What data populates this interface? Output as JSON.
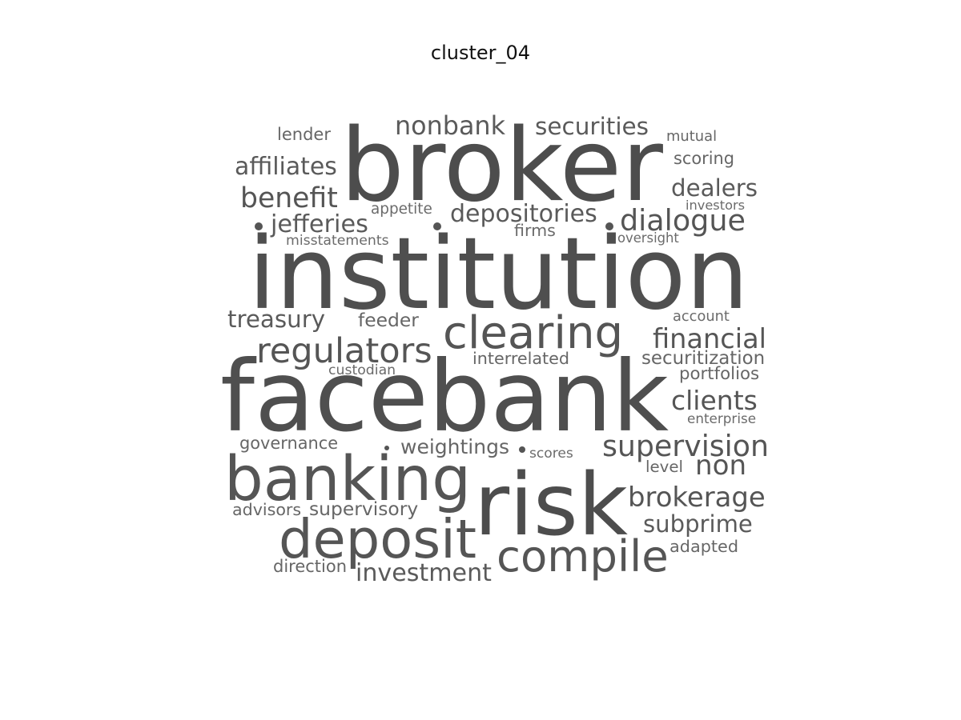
{
  "title": "cluster_04",
  "colors": {
    "word": "#505050",
    "title": "#111111"
  },
  "words": [
    {
      "text": "broker",
      "weight": 100,
      "shade": "#4d4d4d"
    },
    {
      "text": "institution",
      "weight": 100,
      "shade": "#4f4f4f"
    },
    {
      "text": "facebank",
      "weight": 100,
      "shade": "#4f4f4f"
    },
    {
      "text": "risk",
      "weight": 90,
      "shade": "#4d4d4d"
    },
    {
      "text": "banking",
      "weight": 70,
      "shade": "#555555"
    },
    {
      "text": "deposit",
      "weight": 60,
      "shade": "#555555"
    },
    {
      "text": "clearing",
      "weight": 55,
      "shade": "#555555"
    },
    {
      "text": "compile",
      "weight": 48,
      "shade": "#555555"
    },
    {
      "text": "regulators",
      "weight": 40,
      "shade": "#555555"
    },
    {
      "text": "supervision",
      "weight": 34,
      "shade": "#555555"
    },
    {
      "text": "dialogue",
      "weight": 33,
      "shade": "#555555"
    },
    {
      "text": "financial",
      "weight": 32,
      "shade": "#555555"
    },
    {
      "text": "brokerage",
      "weight": 31,
      "shade": "#555555"
    },
    {
      "text": "benefit",
      "weight": 30,
      "shade": "#555555"
    },
    {
      "text": "depositories",
      "weight": 30,
      "shade": "#5a5a5a"
    },
    {
      "text": "clients",
      "weight": 30,
      "shade": "#555555"
    },
    {
      "text": "nonbank",
      "weight": 28,
      "shade": "#5a5a5a"
    },
    {
      "text": "securities",
      "weight": 28,
      "shade": "#5a5a5a"
    },
    {
      "text": "affiliates",
      "weight": 28,
      "shade": "#5a5a5a"
    },
    {
      "text": "jefferies",
      "weight": 28,
      "shade": "#5a5a5a"
    },
    {
      "text": "treasury",
      "weight": 27,
      "shade": "#5a5a5a"
    },
    {
      "text": "investment",
      "weight": 27,
      "shade": "#5a5a5a"
    },
    {
      "text": "non",
      "weight": 27,
      "shade": "#555555"
    },
    {
      "text": "dealers",
      "weight": 26,
      "shade": "#5a5a5a"
    },
    {
      "text": "subprime",
      "weight": 25,
      "shade": "#5a5a5a"
    },
    {
      "text": "weightings",
      "weight": 22,
      "shade": "#666666"
    },
    {
      "text": "supervisory",
      "weight": 21,
      "shade": "#666666"
    },
    {
      "text": "interrelated",
      "weight": 20,
      "shade": "#666666"
    },
    {
      "text": "securitization",
      "weight": 21,
      "shade": "#666666"
    },
    {
      "text": "feeder",
      "weight": 20,
      "shade": "#666666"
    },
    {
      "text": "lender",
      "weight": 19,
      "shade": "#666666"
    },
    {
      "text": "governance",
      "weight": 19,
      "shade": "#666666"
    },
    {
      "text": "advisors",
      "weight": 19,
      "shade": "#666666"
    },
    {
      "text": "direction",
      "weight": 19,
      "shade": "#666666"
    },
    {
      "text": "scoring",
      "weight": 19,
      "shade": "#666666"
    },
    {
      "text": "adapted",
      "weight": 19,
      "shade": "#666666"
    },
    {
      "text": "portfolios",
      "weight": 18,
      "shade": "#666666"
    },
    {
      "text": "level",
      "weight": 18,
      "shade": "#666666"
    },
    {
      "text": "mutual",
      "weight": 17,
      "shade": "#666666"
    },
    {
      "text": "appetite",
      "weight": 16,
      "shade": "#6b6b6b"
    },
    {
      "text": "firms",
      "weight": 16,
      "shade": "#6b6b6b"
    },
    {
      "text": "custodian",
      "weight": 15,
      "shade": "#6b6b6b"
    },
    {
      "text": "account",
      "weight": 16,
      "shade": "#6b6b6b"
    },
    {
      "text": "enterprise",
      "weight": 15,
      "shade": "#6b6b6b"
    },
    {
      "text": "scores",
      "weight": 16,
      "shade": "#6b6b6b"
    },
    {
      "text": "misstatements",
      "weight": 15,
      "shade": "#6b6b6b"
    },
    {
      "text": "investors",
      "weight": 14,
      "shade": "#6b6b6b"
    },
    {
      "text": "oversight",
      "weight": 14,
      "shade": "#6b6b6b"
    }
  ]
}
